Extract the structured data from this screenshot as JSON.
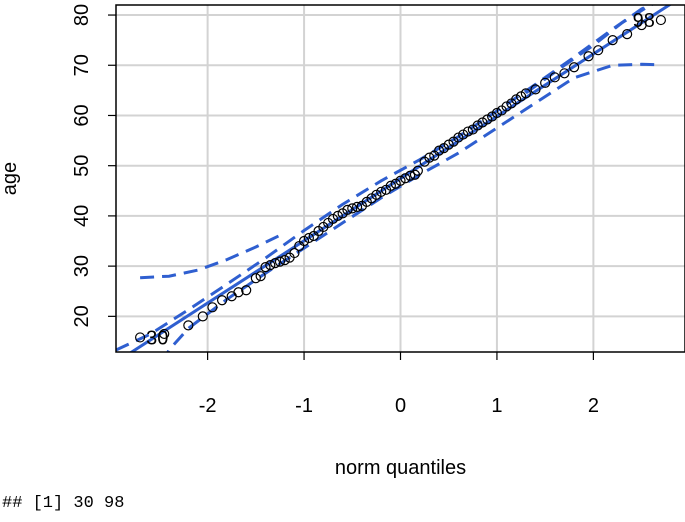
{
  "chart_data": {
    "type": "scatter",
    "xlabel": "norm quantiles",
    "ylabel": "age",
    "xlim": [
      -2.95,
      2.95
    ],
    "ylim": [
      12.9,
      82.0
    ],
    "x_ticks": [
      -2,
      -1,
      0,
      1,
      2
    ],
    "x_tick_labels": [
      "-2",
      "-1",
      "0",
      "1",
      "2"
    ],
    "y_ticks": [
      20,
      30,
      40,
      50,
      60,
      70,
      80
    ],
    "y_tick_labels": [
      "20",
      "30",
      "40",
      "50",
      "60",
      "70",
      "80"
    ],
    "grid": true,
    "reference_line": {
      "intercept": 47.45,
      "slope": 12.4
    },
    "confidence_band": {
      "upper": [
        [
          -2.95,
          13.3
        ],
        [
          -2.6,
          16.4
        ],
        [
          -2.2,
          21.3
        ],
        [
          -1.8,
          26.4
        ],
        [
          -1.4,
          31.6
        ],
        [
          -1.0,
          37.1
        ],
        [
          -0.6,
          42.3
        ],
        [
          -0.2,
          47.0
        ],
        [
          0.2,
          51.2
        ],
        [
          0.6,
          55.8
        ],
        [
          1.0,
          60.9
        ],
        [
          1.4,
          66.2
        ],
        [
          1.8,
          71.6
        ],
        [
          2.2,
          77.2
        ],
        [
          2.5,
          81.2
        ],
        [
          2.95,
          85.0
        ]
      ],
      "lower": [
        [
          -2.95,
          2.0
        ],
        [
          -2.6,
          6.0
        ],
        [
          -2.4,
          13.3
        ],
        [
          -2.2,
          17.6
        ],
        [
          -1.8,
          23.4
        ],
        [
          -1.4,
          28.6
        ],
        [
          -1.0,
          33.6
        ],
        [
          -0.6,
          38.6
        ],
        [
          -0.2,
          43.6
        ],
        [
          0.2,
          48.2
        ],
        [
          0.6,
          52.5
        ],
        [
          1.0,
          57.5
        ],
        [
          1.4,
          62.5
        ],
        [
          1.8,
          67.5
        ],
        [
          2.2,
          70.0
        ],
        [
          2.5,
          70.2
        ],
        [
          2.7,
          70.1
        ]
      ],
      "lower_left_tail": [
        [
          -2.7,
          27.7
        ],
        [
          -2.4,
          28.0
        ],
        [
          -2.1,
          29.2
        ],
        [
          -1.8,
          31.3
        ],
        [
          -1.5,
          33.8
        ],
        [
          -1.2,
          36.6
        ]
      ],
      "upper_right_tail": [
        [
          1.3,
          64.5
        ],
        [
          1.7,
          70.0
        ],
        [
          2.0,
          74.0
        ],
        [
          2.3,
          78.5
        ],
        [
          2.55,
          81.5
        ]
      ]
    },
    "points": [
      [
        -2.7,
        15.8
      ],
      [
        -2.45,
        16.5
      ],
      [
        -2.2,
        18.2
      ],
      [
        -2.05,
        20.0
      ],
      [
        -1.95,
        21.8
      ],
      [
        -1.85,
        23.2
      ],
      [
        -1.75,
        24.0
      ],
      [
        -1.68,
        24.8
      ],
      [
        -1.6,
        25.2
      ],
      [
        -1.5,
        27.6
      ],
      [
        -1.45,
        28.0
      ],
      [
        -1.4,
        29.8
      ],
      [
        -1.35,
        30.2
      ],
      [
        -1.3,
        30.6
      ],
      [
        -1.25,
        30.9
      ],
      [
        -1.2,
        31.2
      ],
      [
        -1.15,
        31.7
      ],
      [
        -1.1,
        32.6
      ],
      [
        -1.05,
        34.0
      ],
      [
        -1.0,
        35.0
      ],
      [
        -0.95,
        35.6
      ],
      [
        -0.9,
        36.0
      ],
      [
        -0.85,
        37.0
      ],
      [
        -0.8,
        37.8
      ],
      [
        -0.75,
        38.6
      ],
      [
        -0.7,
        39.4
      ],
      [
        -0.65,
        40.0
      ],
      [
        -0.6,
        40.5
      ],
      [
        -0.55,
        41.2
      ],
      [
        -0.5,
        41.5
      ],
      [
        -0.45,
        41.8
      ],
      [
        -0.4,
        42.0
      ],
      [
        -0.35,
        42.8
      ],
      [
        -0.3,
        43.5
      ],
      [
        -0.25,
        44.2
      ],
      [
        -0.2,
        44.8
      ],
      [
        -0.15,
        45.2
      ],
      [
        -0.1,
        46.0
      ],
      [
        -0.05,
        46.4
      ],
      [
        0.0,
        47.0
      ],
      [
        0.05,
        47.5
      ],
      [
        0.1,
        48.0
      ],
      [
        0.15,
        48.2
      ],
      [
        0.18,
        49.0
      ],
      [
        0.25,
        50.8
      ],
      [
        0.3,
        51.6
      ],
      [
        0.35,
        52.0
      ],
      [
        0.4,
        53.0
      ],
      [
        0.45,
        53.5
      ],
      [
        0.5,
        54.2
      ],
      [
        0.55,
        54.8
      ],
      [
        0.6,
        55.6
      ],
      [
        0.65,
        56.2
      ],
      [
        0.7,
        56.8
      ],
      [
        0.75,
        57.2
      ],
      [
        0.8,
        58.0
      ],
      [
        0.85,
        58.6
      ],
      [
        0.9,
        59.2
      ],
      [
        0.95,
        59.8
      ],
      [
        1.0,
        60.5
      ],
      [
        1.05,
        61.0
      ],
      [
        1.1,
        61.8
      ],
      [
        1.15,
        62.4
      ],
      [
        1.2,
        63.2
      ],
      [
        1.25,
        63.8
      ],
      [
        1.3,
        64.4
      ],
      [
        1.4,
        65.2
      ],
      [
        1.5,
        66.5
      ],
      [
        1.6,
        67.6
      ],
      [
        1.7,
        68.4
      ],
      [
        1.8,
        69.6
      ],
      [
        1.95,
        71.8
      ],
      [
        2.05,
        73.0
      ],
      [
        2.2,
        75.0
      ],
      [
        2.35,
        76.2
      ],
      [
        2.5,
        78.0
      ],
      [
        2.7,
        79.0
      ]
    ],
    "labeled_points": [
      {
        "label": "30",
        "x": -2.7,
        "y": 15.8
      },
      {
        "label": "98",
        "x": 2.7,
        "y": 79.0
      }
    ],
    "colors": {
      "line": "#2f5fd0",
      "grid": "#d3d3d3",
      "points": "#000000"
    }
  },
  "console_output": "## [1] 30 98"
}
